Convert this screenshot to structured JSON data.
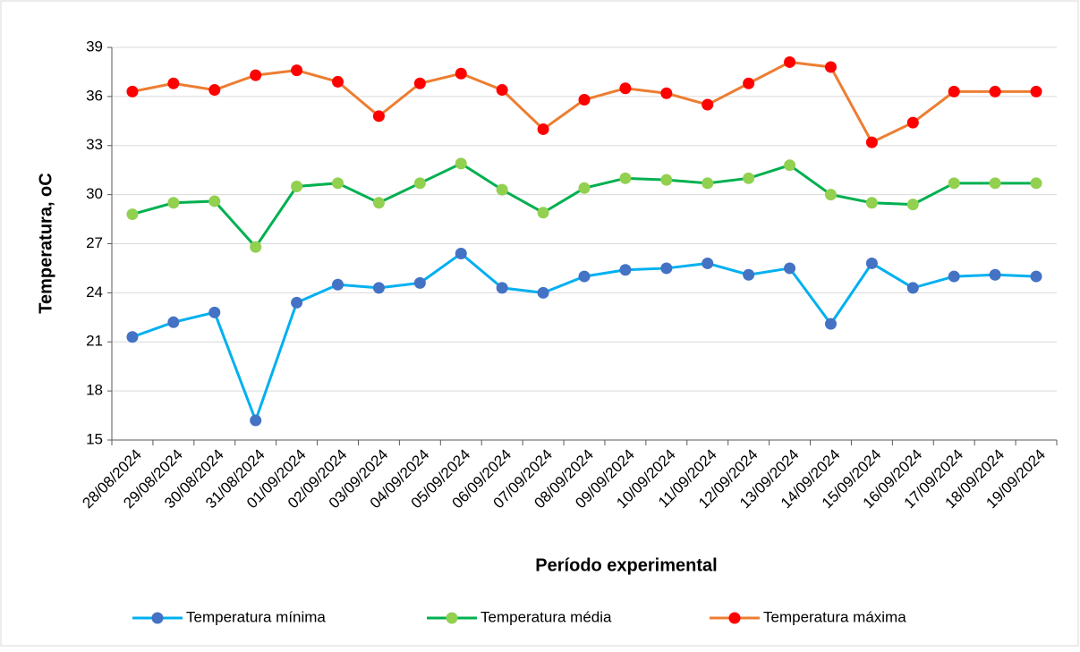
{
  "chart_data": {
    "type": "line",
    "y_label": "Temperatura, oC",
    "x_label": "Período experimental",
    "categories": [
      "28/08/2024",
      "29/08/2024",
      "30/08/2024",
      "31/08/2024",
      "01/09/2024",
      "02/09/2024",
      "03/09/2024",
      "04/09/2024",
      "05/09/2024",
      "06/09/2024",
      "07/09/2024",
      "08/09/2024",
      "09/09/2024",
      "10/09/2024",
      "11/09/2024",
      "12/09/2024",
      "13/09/2024",
      "14/09/2024",
      "15/09/2024",
      "16/09/2024",
      "17/09/2024",
      "18/09/2024",
      "19/09/2024"
    ],
    "series": [
      {
        "name": "Temperatura mínima",
        "color": "#00b0f0",
        "marker_color": "#4472c4",
        "values": [
          21.3,
          22.2,
          22.8,
          16.2,
          23.4,
          24.5,
          24.3,
          24.6,
          26.4,
          24.3,
          24.0,
          25.0,
          25.4,
          25.5,
          25.8,
          25.1,
          25.5,
          22.1,
          25.8,
          24.3,
          25.0,
          25.1,
          25.0
        ]
      },
      {
        "name": "Temperatura média",
        "color": "#00b050",
        "marker_color": "#92d050",
        "values": [
          28.8,
          29.5,
          29.6,
          26.8,
          30.5,
          30.7,
          29.5,
          30.7,
          31.9,
          30.3,
          28.9,
          30.4,
          31.0,
          30.9,
          30.7,
          31.0,
          31.8,
          30.0,
          29.5,
          29.4,
          30.7,
          30.7,
          30.7
        ]
      },
      {
        "name": "Temperatura máxima",
        "color": "#ed7d31",
        "marker_color": "#ff0000",
        "values": [
          36.3,
          36.8,
          36.4,
          37.3,
          37.6,
          36.9,
          34.8,
          36.8,
          37.4,
          36.4,
          34.0,
          35.8,
          36.5,
          36.2,
          35.5,
          36.8,
          38.1,
          37.8,
          33.2,
          34.4,
          36.3,
          36.3,
          36.3
        ]
      }
    ],
    "ylim": [
      15,
      39
    ],
    "yticks": [
      15,
      18,
      21,
      24,
      27,
      30,
      33,
      36,
      39
    ],
    "grid": true,
    "legend": "bottom"
  }
}
